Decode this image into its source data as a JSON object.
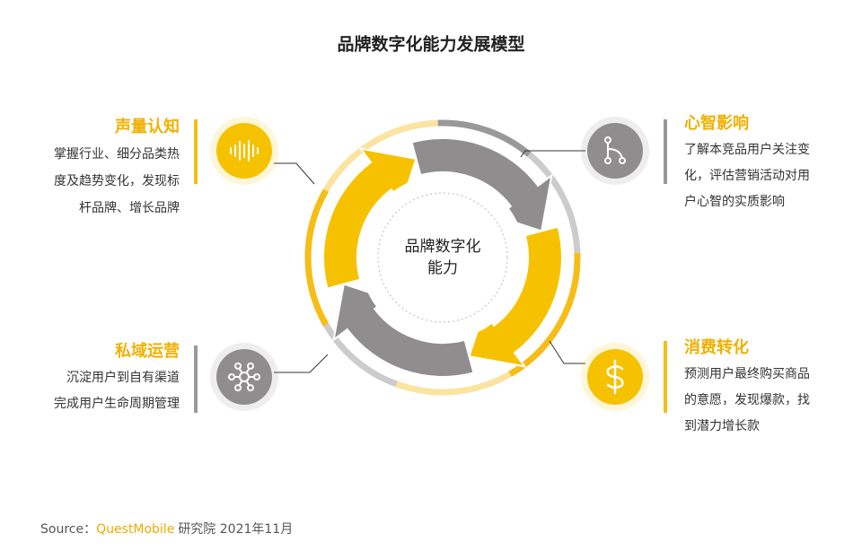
{
  "title": "品牌数字化能力发展模型",
  "center": {
    "lines": [
      "品牌数字化",
      "能力"
    ]
  },
  "blocks": [
    {
      "title": "声量认知",
      "lines": [
        "掌握行业、细分品类热",
        "度及趋势变化，发现标",
        "杆品牌、增长品牌"
      ]
    },
    {
      "title": "心智影响",
      "lines": [
        "了解本竞品用户关注变",
        "化，评估营销活动对用",
        "户心智的实质影响"
      ]
    },
    {
      "title": "私域运营",
      "lines": [
        "沉淀用户到自有渠道",
        "完成用户生命周期管理"
      ]
    },
    {
      "title": "消费转化",
      "lines": [
        "预测用户最终购买商品",
        "的意愿，发现爆款，找",
        "到潜力增长款"
      ]
    }
  ],
  "source": {
    "label": "Source：",
    "brand": "QuestMobile",
    "text": "研究院 2021年11月"
  }
}
